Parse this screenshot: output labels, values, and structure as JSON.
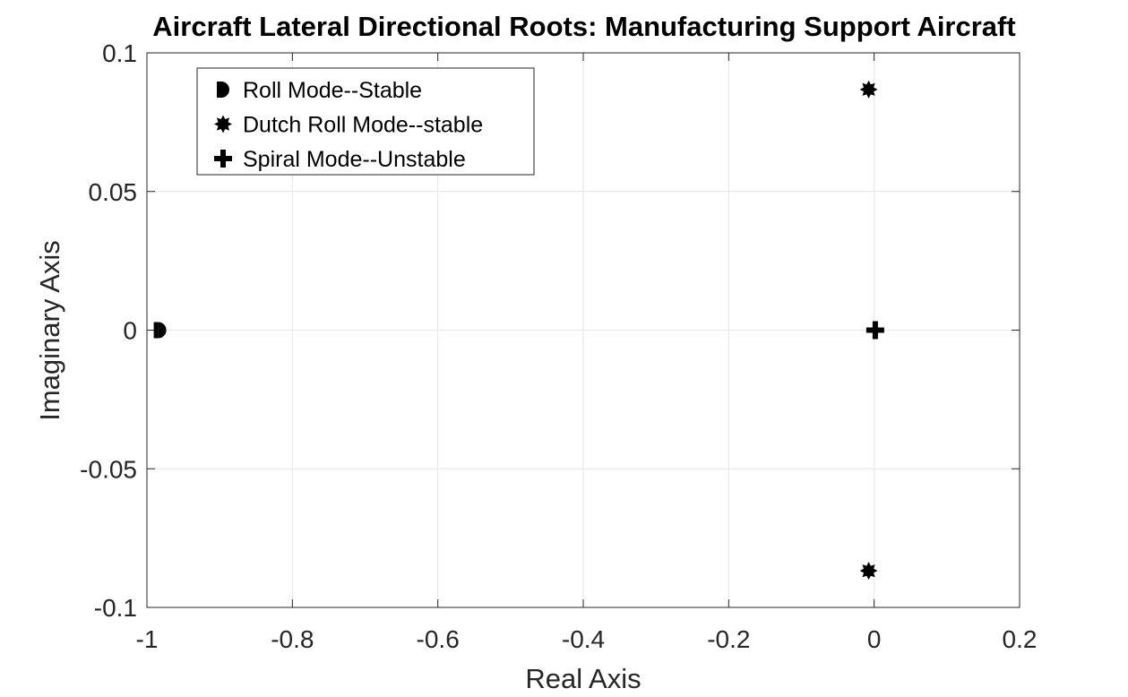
{
  "chart_data": {
    "type": "scatter",
    "title": "Aircraft Lateral Directional Roots: Manufacturing Support Aircraft",
    "xlabel": "Real Axis",
    "ylabel": "Imaginary Axis",
    "xlim": [
      -1,
      0.2
    ],
    "ylim": [
      -0.1,
      0.1
    ],
    "xticks": [
      -1,
      -0.8,
      -0.6,
      -0.4,
      -0.2,
      0,
      0.2
    ],
    "xtick_labels": [
      "-1",
      "-0.8",
      "-0.6",
      "-0.4",
      "-0.2",
      "0",
      "0.2"
    ],
    "yticks": [
      -0.1,
      -0.05,
      0,
      0.05,
      0.1
    ],
    "ytick_labels": [
      "-0.1",
      "-0.05",
      "0",
      "0.05",
      "0.1"
    ],
    "grid": true,
    "legend_position": "top-left",
    "series": [
      {
        "name": "Roll Mode--Stable",
        "marker": "half-circle",
        "points": [
          [
            -0.982,
            0
          ]
        ]
      },
      {
        "name": "Dutch Roll Mode--stable",
        "marker": "burst",
        "points": [
          [
            -0.0075,
            0.0868
          ],
          [
            -0.0075,
            -0.0868
          ]
        ]
      },
      {
        "name": "Spiral Mode--Unstable",
        "marker": "plus",
        "points": [
          [
            0.0015,
            0
          ]
        ]
      }
    ],
    "colors": {
      "marker": "#000000",
      "grid": "#e6e6e6",
      "axis": "#262626"
    }
  }
}
